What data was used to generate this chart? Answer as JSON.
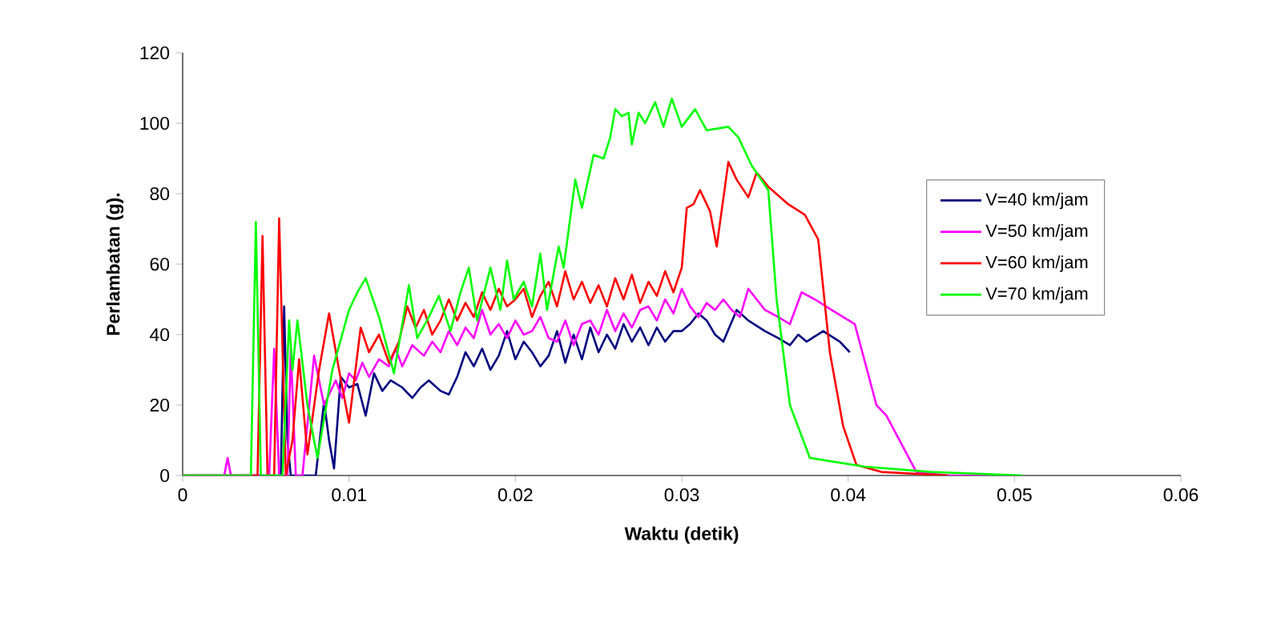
{
  "chart_data": {
    "type": "line",
    "xlabel": "Waktu (detik)",
    "ylabel": "Perlambatan (g).",
    "xlim": [
      0,
      0.06
    ],
    "xticks": [
      0,
      0.01,
      0.02,
      0.03,
      0.04,
      0.05,
      0.06
    ],
    "ylim": [
      0,
      120
    ],
    "yticks": [
      0,
      20,
      40,
      60,
      80,
      100,
      120
    ],
    "grid": false,
    "legend": "right",
    "marker": "none",
    "line_style": "solid",
    "series": [
      {
        "name": "V=40 km/jam",
        "color": "#000080",
        "x": [
          0,
          0.0059,
          0.0061,
          0.0063,
          0.0065,
          0.008,
          0.0085,
          0.0088,
          0.0091,
          0.0095,
          0.01,
          0.0105,
          0.011,
          0.0115,
          0.012,
          0.0125,
          0.0132,
          0.0138,
          0.0143,
          0.0148,
          0.0155,
          0.016,
          0.0165,
          0.017,
          0.0175,
          0.018,
          0.0185,
          0.019,
          0.0195,
          0.02,
          0.0205,
          0.021,
          0.0215,
          0.022,
          0.0225,
          0.023,
          0.0235,
          0.024,
          0.0245,
          0.025,
          0.0255,
          0.026,
          0.0265,
          0.027,
          0.0275,
          0.028,
          0.0285,
          0.029,
          0.0295,
          0.03,
          0.0305,
          0.031,
          0.0315,
          0.032,
          0.0325,
          0.0333,
          0.034,
          0.035,
          0.0358,
          0.0365,
          0.037,
          0.0375,
          0.0385,
          0.0395,
          0.0401
        ],
        "values": [
          0,
          0,
          48,
          10,
          0,
          0,
          21,
          10,
          2,
          28,
          25,
          26,
          17,
          29,
          24,
          27,
          25,
          22,
          25,
          27,
          24,
          23,
          28,
          35,
          31,
          36,
          30,
          34,
          41,
          33,
          38,
          35,
          31,
          34,
          41,
          32,
          40,
          33,
          42,
          35,
          40,
          36,
          43,
          38,
          42,
          37,
          42,
          38,
          41,
          41,
          43,
          46,
          44,
          40,
          38,
          47,
          44,
          41,
          39,
          37,
          40,
          38,
          41,
          38,
          35
        ]
      },
      {
        "name": "V=50 km/jam",
        "color": "#ff00ff",
        "x": [
          0,
          0.0025,
          0.0027,
          0.0029,
          0.0052,
          0.0055,
          0.0058,
          0.0063,
          0.0065,
          0.0068,
          0.0072,
          0.0079,
          0.0085,
          0.0092,
          0.0096,
          0.01,
          0.0104,
          0.0108,
          0.0112,
          0.0118,
          0.0124,
          0.0128,
          0.0132,
          0.0138,
          0.0145,
          0.015,
          0.0155,
          0.016,
          0.0165,
          0.017,
          0.0175,
          0.018,
          0.0185,
          0.019,
          0.0195,
          0.02,
          0.0205,
          0.021,
          0.0215,
          0.022,
          0.0225,
          0.023,
          0.0235,
          0.024,
          0.0245,
          0.025,
          0.0255,
          0.026,
          0.0265,
          0.027,
          0.0275,
          0.028,
          0.0285,
          0.029,
          0.0295,
          0.03,
          0.0305,
          0.031,
          0.0315,
          0.032,
          0.0325,
          0.033,
          0.0335,
          0.034,
          0.0345,
          0.035,
          0.0358,
          0.0365,
          0.0372,
          0.038,
          0.039,
          0.0404,
          0.0417,
          0.0423,
          0.0441,
          0.046,
          0.05
        ],
        "values": [
          0,
          0,
          5,
          0,
          0,
          36,
          0,
          0,
          36,
          0,
          0,
          34,
          20,
          27,
          22,
          29,
          27,
          32,
          28,
          33,
          31,
          36,
          31,
          37,
          34,
          38,
          35,
          41,
          37,
          42,
          39,
          47,
          40,
          43,
          39,
          44,
          40,
          41,
          45,
          39,
          38,
          44,
          37,
          43,
          44,
          40,
          47,
          41,
          46,
          42,
          47,
          48,
          44,
          50,
          46,
          53,
          48,
          45,
          49,
          47,
          50,
          47,
          45,
          53,
          50,
          47,
          45,
          43,
          52,
          50,
          47,
          43,
          20,
          17,
          1,
          0,
          0
        ]
      },
      {
        "name": "V=60 km/jam",
        "color": "#ff0000",
        "x": [
          0,
          0.0045,
          0.0048,
          0.0051,
          0.0055,
          0.0058,
          0.0062,
          0.0066,
          0.007,
          0.0075,
          0.0082,
          0.0088,
          0.0094,
          0.01,
          0.0107,
          0.0112,
          0.0118,
          0.0124,
          0.013,
          0.0135,
          0.014,
          0.0145,
          0.015,
          0.0155,
          0.016,
          0.0165,
          0.017,
          0.0175,
          0.018,
          0.0185,
          0.019,
          0.0195,
          0.02,
          0.0205,
          0.021,
          0.0215,
          0.022,
          0.0225,
          0.023,
          0.0235,
          0.024,
          0.0245,
          0.025,
          0.0255,
          0.026,
          0.0265,
          0.027,
          0.0275,
          0.028,
          0.0285,
          0.029,
          0.0295,
          0.03,
          0.0303,
          0.0307,
          0.0311,
          0.0317,
          0.0321,
          0.0328,
          0.0333,
          0.034,
          0.0345,
          0.0352,
          0.0364,
          0.0374,
          0.0382,
          0.0389,
          0.0397,
          0.0405,
          0.042,
          0.046
        ],
        "values": [
          0,
          0,
          68,
          0,
          0,
          73,
          0,
          10,
          33,
          6,
          30,
          46,
          30,
          15,
          42,
          35,
          40,
          32,
          38,
          48,
          42,
          47,
          40,
          44,
          50,
          44,
          49,
          45,
          52,
          47,
          53,
          48,
          50,
          53,
          45,
          51,
          55,
          48,
          58,
          50,
          55,
          49,
          54,
          48,
          56,
          50,
          57,
          49,
          55,
          51,
          58,
          52,
          59,
          76,
          77,
          81,
          75,
          65,
          89,
          84,
          79,
          86,
          82,
          77,
          74,
          67,
          35,
          14,
          3,
          1,
          0
        ]
      },
      {
        "name": "V=70 km/jam",
        "color": "#00ff00",
        "x": [
          0,
          0.0041,
          0.0044,
          0.0047,
          0.0055,
          0.006,
          0.0064,
          0.0066,
          0.0069,
          0.0075,
          0.0081,
          0.009,
          0.01,
          0.0105,
          0.011,
          0.0118,
          0.0127,
          0.0136,
          0.0141,
          0.0148,
          0.0154,
          0.0161,
          0.0167,
          0.0172,
          0.0177,
          0.0185,
          0.0191,
          0.0195,
          0.0199,
          0.0205,
          0.021,
          0.0215,
          0.0219,
          0.0226,
          0.0229,
          0.0236,
          0.024,
          0.0247,
          0.0253,
          0.0257,
          0.026,
          0.0264,
          0.0268,
          0.027,
          0.0274,
          0.0278,
          0.0284,
          0.0289,
          0.0294,
          0.03,
          0.0308,
          0.0315,
          0.0328,
          0.0334,
          0.0342,
          0.0352,
          0.0357,
          0.0365,
          0.0377,
          0.041,
          0.045,
          0.0505
        ],
        "values": [
          0,
          0,
          72,
          0,
          0,
          0,
          44,
          30,
          44,
          20,
          5,
          30,
          47,
          52,
          56,
          45,
          29,
          54,
          39,
          45,
          51,
          41,
          52,
          59,
          44,
          59,
          47,
          61,
          50,
          55,
          48,
          63,
          47,
          65,
          59,
          84,
          76,
          91,
          90,
          96,
          104,
          102,
          103,
          94,
          103,
          100,
          106,
          99,
          107,
          99,
          104,
          98,
          99,
          96,
          88,
          81,
          50,
          20,
          5,
          2.5,
          1,
          0
        ]
      }
    ]
  }
}
